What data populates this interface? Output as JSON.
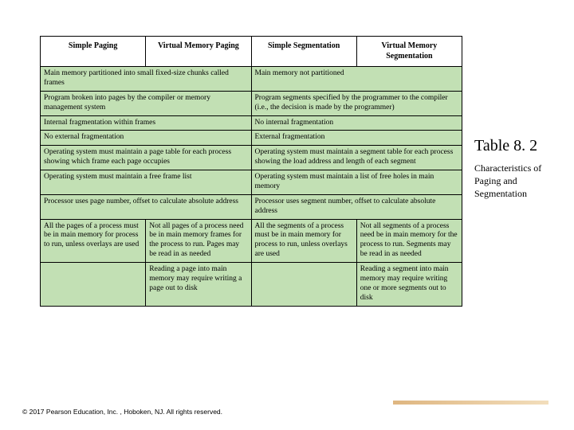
{
  "table": {
    "background_color": "#c2e0b4",
    "border_color": "#000000",
    "header_bg": "#ffffff",
    "font_family": "Times New Roman",
    "header_fontsize": 10,
    "cell_fontsize": 9.5,
    "columns": [
      {
        "label": "Simple Paging",
        "width_pct": 25
      },
      {
        "label": "Virtual Memory Paging",
        "width_pct": 25
      },
      {
        "label": "Simple Segmentation",
        "width_pct": 25
      },
      {
        "label": "Virtual Memory Segmentation",
        "width_pct": 25
      }
    ],
    "rows": [
      [
        {
          "text": "Main memory partitioned into small fixed-size chunks called frames",
          "colspan": 2
        },
        {
          "text": "Main memory not partitioned",
          "colspan": 2
        }
      ],
      [
        {
          "text": "Program broken into pages by the compiler or memory management system",
          "colspan": 2
        },
        {
          "text": "Program segments specified by the programmer to the compiler (i.e., the decision is made by the programmer)",
          "colspan": 2
        }
      ],
      [
        {
          "text": "Internal fragmentation within frames",
          "colspan": 2
        },
        {
          "text": "No internal fragmentation",
          "colspan": 2
        }
      ],
      [
        {
          "text": "No external fragmentation",
          "colspan": 2
        },
        {
          "text": "External fragmentation",
          "colspan": 2
        }
      ],
      [
        {
          "text": "Operating system must maintain a page table for each process showing which frame each page occupies",
          "colspan": 2
        },
        {
          "text": "Operating system must maintain a segment table for each process showing the load address and length of each segment",
          "colspan": 2
        }
      ],
      [
        {
          "text": "Operating system must maintain a free frame list",
          "colspan": 2
        },
        {
          "text": "Operating system must maintain a list of free holes in main memory",
          "colspan": 2
        }
      ],
      [
        {
          "text": "Processor uses page number, offset to calculate absolute address",
          "colspan": 2
        },
        {
          "text": "Processor uses segment number, offset to calculate absolute address",
          "colspan": 2
        }
      ],
      [
        {
          "text": "All the pages of a process must be in main memory for process to run, unless overlays are used",
          "colspan": 1
        },
        {
          "text": "Not all pages of a process need be in main memory frames for the process to run. Pages may be read in as needed",
          "colspan": 1
        },
        {
          "text": "All the segments of a process must be in main memory for process to run, unless overlays are used",
          "colspan": 1
        },
        {
          "text": "Not all segments of a process need be in main memory for the process to run. Segments may be read in as needed",
          "colspan": 1
        }
      ],
      [
        {
          "text": "",
          "colspan": 1
        },
        {
          "text": "Reading a page into main memory may require writing a page out to disk",
          "colspan": 1
        },
        {
          "text": "",
          "colspan": 1
        },
        {
          "text": "Reading a segment into main memory may require writing one or more segments out to disk",
          "colspan": 1
        }
      ]
    ]
  },
  "sidebar": {
    "table_number": "Table 8. 2",
    "caption": "Characteristics of Paging and Segmentation",
    "number_fontsize": 20,
    "caption_fontsize": 12
  },
  "footer": {
    "text": "© 2017 Pearson Education, Inc. , Hoboken, NJ. All rights reserved.",
    "fontsize": 8.5,
    "stripe_colors": [
      "#d9a96a",
      "#f0d8b0"
    ]
  }
}
